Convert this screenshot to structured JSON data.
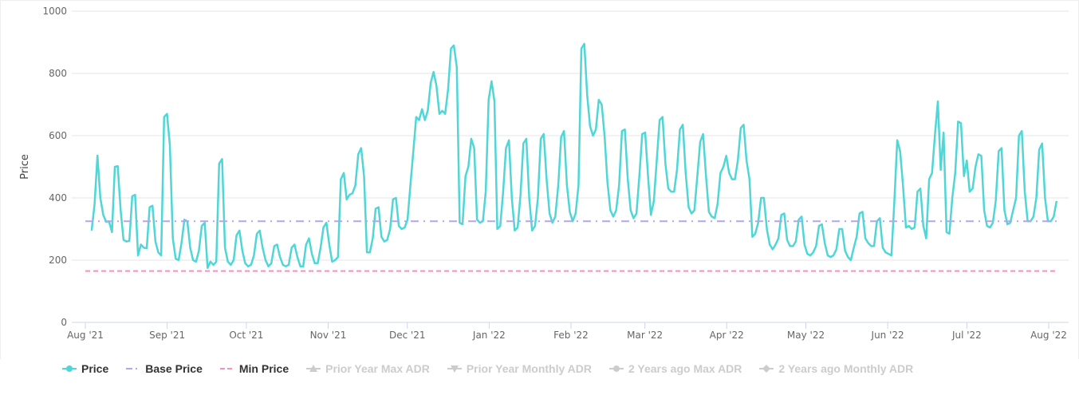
{
  "chart_data": {
    "type": "line",
    "ylabel": "Price",
    "ylim": [
      0,
      1000
    ],
    "yticks": [
      0,
      200,
      400,
      600,
      800,
      1000
    ],
    "xaxis_unit": "days since Aug 1 2021",
    "xticks": [
      {
        "label": "Aug '21",
        "day": 0
      },
      {
        "label": "Sep '21",
        "day": 31
      },
      {
        "label": "Oct '21",
        "day": 61
      },
      {
        "label": "Nov '21",
        "day": 92
      },
      {
        "label": "Dec '21",
        "day": 122
      },
      {
        "label": "Jan '22",
        "day": 153
      },
      {
        "label": "Feb '22",
        "day": 184
      },
      {
        "label": "Mar '22",
        "day": 212
      },
      {
        "label": "Apr '22",
        "day": 243
      },
      {
        "label": "May '22",
        "day": 273
      },
      {
        "label": "Jun '22",
        "day": 304
      },
      {
        "label": "Jul '22",
        "day": 334
      },
      {
        "label": "Aug '22",
        "day": 365
      }
    ],
    "grid": true,
    "legend_position": "bottom-left",
    "series": [
      {
        "name": "Price",
        "color": "#4fd6d6",
        "style": "solid",
        "start_day": 2.4,
        "end_day": 368,
        "values": [
          295,
          380,
          536,
          400,
          345,
          323,
          325,
          290,
          500,
          502,
          360,
          265,
          260,
          262,
          405,
          410,
          215,
          250,
          240,
          238,
          370,
          375,
          260,
          225,
          215,
          660,
          670,
          570,
          270,
          205,
          200,
          255,
          330,
          325,
          240,
          200,
          195,
          230,
          310,
          320,
          175,
          195,
          185,
          195,
          510,
          525,
          240,
          195,
          185,
          200,
          280,
          295,
          230,
          190,
          180,
          185,
          215,
          285,
          295,
          240,
          200,
          180,
          190,
          245,
          250,
          210,
          185,
          180,
          185,
          240,
          250,
          210,
          180,
          180,
          250,
          270,
          220,
          190,
          190,
          240,
          305,
          320,
          250,
          195,
          200,
          210,
          460,
          480,
          395,
          410,
          415,
          440,
          540,
          560,
          470,
          225,
          225,
          270,
          365,
          370,
          275,
          260,
          265,
          300,
          395,
          400,
          310,
          300,
          305,
          330,
          440,
          550,
          660,
          650,
          685,
          650,
          680,
          770,
          805,
          760,
          670,
          680,
          670,
          750,
          880,
          890,
          820,
          320,
          315,
          470,
          500,
          590,
          560,
          330,
          320,
          325,
          420,
          715,
          775,
          710,
          300,
          310,
          420,
          560,
          585,
          400,
          295,
          305,
          410,
          575,
          590,
          400,
          295,
          310,
          400,
          590,
          605,
          460,
          350,
          320,
          340,
          440,
          595,
          615,
          440,
          355,
          325,
          350,
          440,
          880,
          895,
          730,
          630,
          600,
          620,
          715,
          700,
          600,
          450,
          360,
          340,
          360,
          440,
          615,
          620,
          460,
          360,
          335,
          350,
          470,
          605,
          610,
          470,
          345,
          390,
          520,
          650,
          660,
          510,
          430,
          420,
          420,
          490,
          620,
          635,
          480,
          370,
          350,
          360,
          470,
          580,
          605,
          470,
          355,
          340,
          335,
          380,
          480,
          500,
          535,
          480,
          460,
          460,
          520,
          625,
          635,
          520,
          460,
          275,
          285,
          320,
          400,
          400,
          300,
          250,
          235,
          250,
          270,
          345,
          350,
          265,
          245,
          245,
          260,
          330,
          340,
          250,
          220,
          215,
          225,
          245,
          310,
          315,
          255,
          215,
          210,
          215,
          235,
          300,
          300,
          230,
          210,
          200,
          240,
          275,
          350,
          355,
          270,
          255,
          245,
          245,
          325,
          335,
          240,
          225,
          220,
          215,
          385,
          585,
          550,
          440,
          305,
          310,
          300,
          305,
          420,
          430,
          310,
          270,
          460,
          480,
          600,
          710,
          490,
          610,
          290,
          285,
          400,
          480,
          645,
          640,
          470,
          520,
          420,
          430,
          500,
          540,
          535,
          360,
          310,
          305,
          320,
          390,
          550,
          560,
          360,
          315,
          320,
          360,
          400,
          600,
          615,
          420,
          325,
          325,
          340,
          400,
          555,
          575,
          400,
          325,
          325,
          340,
          390
        ]
      },
      {
        "name": "Base Price",
        "color": "#b3a6ee",
        "style": "dash-dot",
        "value": 325
      },
      {
        "name": "Min Price",
        "color": "#f78fc4",
        "style": "dashed",
        "value": 165
      },
      {
        "name": "Prior Year Max ADR",
        "color": "#cccccc",
        "hidden": true
      },
      {
        "name": "Prior Year Monthly ADR",
        "color": "#cccccc",
        "hidden": true
      },
      {
        "name": "2 Years ago Max ADR",
        "color": "#cccccc",
        "hidden": true
      },
      {
        "name": "2 Years ago Monthly ADR",
        "color": "#cccccc",
        "hidden": true
      }
    ]
  }
}
